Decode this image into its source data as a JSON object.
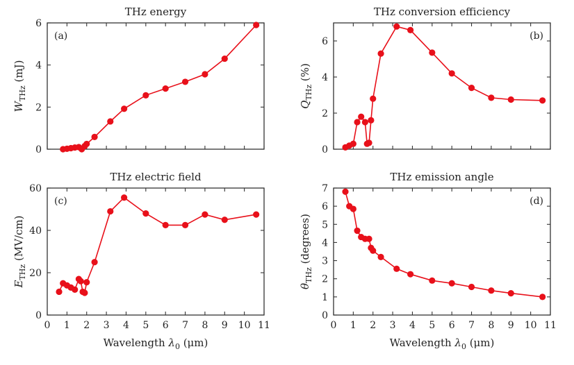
{
  "series_color": "#e8101a",
  "xlabel_text": "Wavelength",
  "xlabel_symbol": "λ",
  "xlabel_sub": "0",
  "xlabel_unit": "(μm)",
  "chart_data": [
    {
      "type": "line",
      "title": "THz energy",
      "tag": "(a)",
      "ylabel": {
        "symbol": "W",
        "sub": "THz",
        "unit": "(mJ)"
      },
      "xlim": [
        0,
        11
      ],
      "ylim": [
        0,
        6
      ],
      "xticks": [
        0,
        1,
        2,
        3,
        4,
        5,
        6,
        7,
        8,
        9,
        10,
        11
      ],
      "yticks": [
        0,
        2,
        4,
        6
      ],
      "show_xticklabels": false,
      "x": [
        0.8,
        1.0,
        1.2,
        1.4,
        1.6,
        1.75,
        1.9,
        2.0,
        2.4,
        3.2,
        3.9,
        5.0,
        6.0,
        7.0,
        8.0,
        9.0,
        10.6
      ],
      "y": [
        0.0,
        0.02,
        0.05,
        0.08,
        0.1,
        0.0,
        0.15,
        0.25,
        0.58,
        1.32,
        1.92,
        2.56,
        2.88,
        3.2,
        3.56,
        4.3,
        5.9
      ]
    },
    {
      "type": "line",
      "title": "THz conversion efficiency",
      "tag": "(b)",
      "ylabel": {
        "symbol": "Q",
        "sub": "THz",
        "unit": "(%)"
      },
      "xlim": [
        0,
        11
      ],
      "ylim": [
        0,
        7
      ],
      "xticks": [
        0,
        1,
        2,
        3,
        4,
        5,
        6,
        7,
        8,
        9,
        10,
        11
      ],
      "yticks": [
        0,
        2,
        4,
        6
      ],
      "show_xticklabels": false,
      "x": [
        0.6,
        0.8,
        1.0,
        1.2,
        1.4,
        1.6,
        1.7,
        1.8,
        1.9,
        2.0,
        2.4,
        3.2,
        3.9,
        5.0,
        6.0,
        7.0,
        8.0,
        9.0,
        10.6
      ],
      "y": [
        0.1,
        0.2,
        0.3,
        1.5,
        1.8,
        1.5,
        0.3,
        0.35,
        1.6,
        2.8,
        5.3,
        6.8,
        6.6,
        5.35,
        4.2,
        3.4,
        2.85,
        2.75,
        2.7
      ]
    },
    {
      "type": "line",
      "title": "THz electric field",
      "tag": "(c)",
      "ylabel": {
        "symbol": "E",
        "sub": "THz",
        "unit": "(MV/cm)"
      },
      "xlim": [
        0,
        11
      ],
      "ylim": [
        0,
        60
      ],
      "xticks": [
        0,
        1,
        2,
        3,
        4,
        5,
        6,
        7,
        8,
        9,
        10,
        11
      ],
      "yticks": [
        0,
        20,
        40,
        60
      ],
      "show_xticklabels": true,
      "x": [
        0.6,
        0.8,
        1.0,
        1.2,
        1.4,
        1.6,
        1.7,
        1.8,
        1.9,
        2.0,
        2.4,
        3.2,
        3.9,
        5.0,
        6.0,
        7.0,
        8.0,
        9.0,
        10.6
      ],
      "y": [
        11,
        15,
        14,
        13,
        12,
        17,
        16,
        11,
        10.5,
        15.5,
        25,
        49,
        55.5,
        48,
        42.5,
        42.5,
        47.5,
        45,
        47.5
      ]
    },
    {
      "type": "line",
      "title": "THz emission angle",
      "tag": "(d)",
      "ylabel": {
        "symbol": "θ",
        "sub": "THz",
        "unit": "(degrees)"
      },
      "xlim": [
        0,
        11
      ],
      "ylim": [
        0,
        7
      ],
      "xticks": [
        0,
        1,
        2,
        3,
        4,
        5,
        6,
        7,
        8,
        9,
        10,
        11
      ],
      "yticks": [
        0,
        1,
        2,
        3,
        4,
        5,
        6,
        7
      ],
      "show_xticklabels": true,
      "x": [
        0.6,
        0.8,
        1.0,
        1.2,
        1.4,
        1.6,
        1.8,
        1.9,
        2.0,
        2.4,
        3.2,
        3.9,
        5.0,
        6.0,
        7.0,
        8.0,
        9.0,
        10.6
      ],
      "y": [
        6.8,
        6.0,
        5.85,
        4.65,
        4.3,
        4.2,
        4.2,
        3.7,
        3.55,
        3.2,
        2.55,
        2.25,
        1.9,
        1.75,
        1.55,
        1.35,
        1.2,
        1.0
      ]
    }
  ]
}
